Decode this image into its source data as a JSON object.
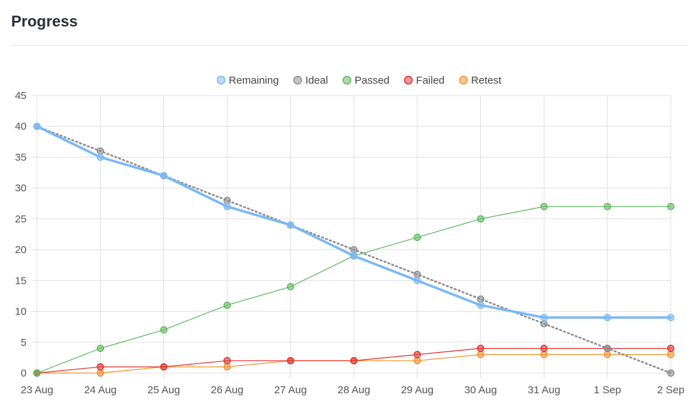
{
  "page": {
    "title": "Progress"
  },
  "chart_data": {
    "type": "line",
    "categories": [
      "23 Aug",
      "24 Aug",
      "25 Aug",
      "26 Aug",
      "27 Aug",
      "28 Aug",
      "29 Aug",
      "30 Aug",
      "31 Aug",
      "1 Sep",
      "2 Sep"
    ],
    "ylim": [
      0,
      45
    ],
    "yticks": [
      0,
      5,
      10,
      15,
      20,
      25,
      30,
      35,
      40,
      45
    ],
    "grid": true,
    "legend_position": "top-center",
    "series": [
      {
        "name": "Remaining",
        "color": "#7ab8f5",
        "line_style": "solid",
        "values": [
          40,
          35,
          32,
          27,
          24,
          19,
          15,
          11,
          9,
          9,
          9
        ]
      },
      {
        "name": "Ideal",
        "color": "#8c8c8c",
        "line_style": "dotted",
        "values": [
          40,
          36,
          32,
          28,
          24,
          20,
          16,
          12,
          8,
          4,
          0
        ]
      },
      {
        "name": "Passed",
        "color": "#5cb85c",
        "line_style": "solid",
        "values": [
          0,
          4,
          7,
          11,
          14,
          19,
          22,
          25,
          27,
          27,
          27
        ]
      },
      {
        "name": "Failed",
        "color": "#e03030",
        "line_style": "solid",
        "values": [
          0,
          1,
          1,
          2,
          2,
          2,
          3,
          4,
          4,
          4,
          4
        ]
      },
      {
        "name": "Retest",
        "color": "#f0922e",
        "line_style": "solid",
        "values": [
          0,
          0,
          1,
          1,
          2,
          2,
          2,
          3,
          3,
          3,
          3
        ]
      }
    ]
  }
}
